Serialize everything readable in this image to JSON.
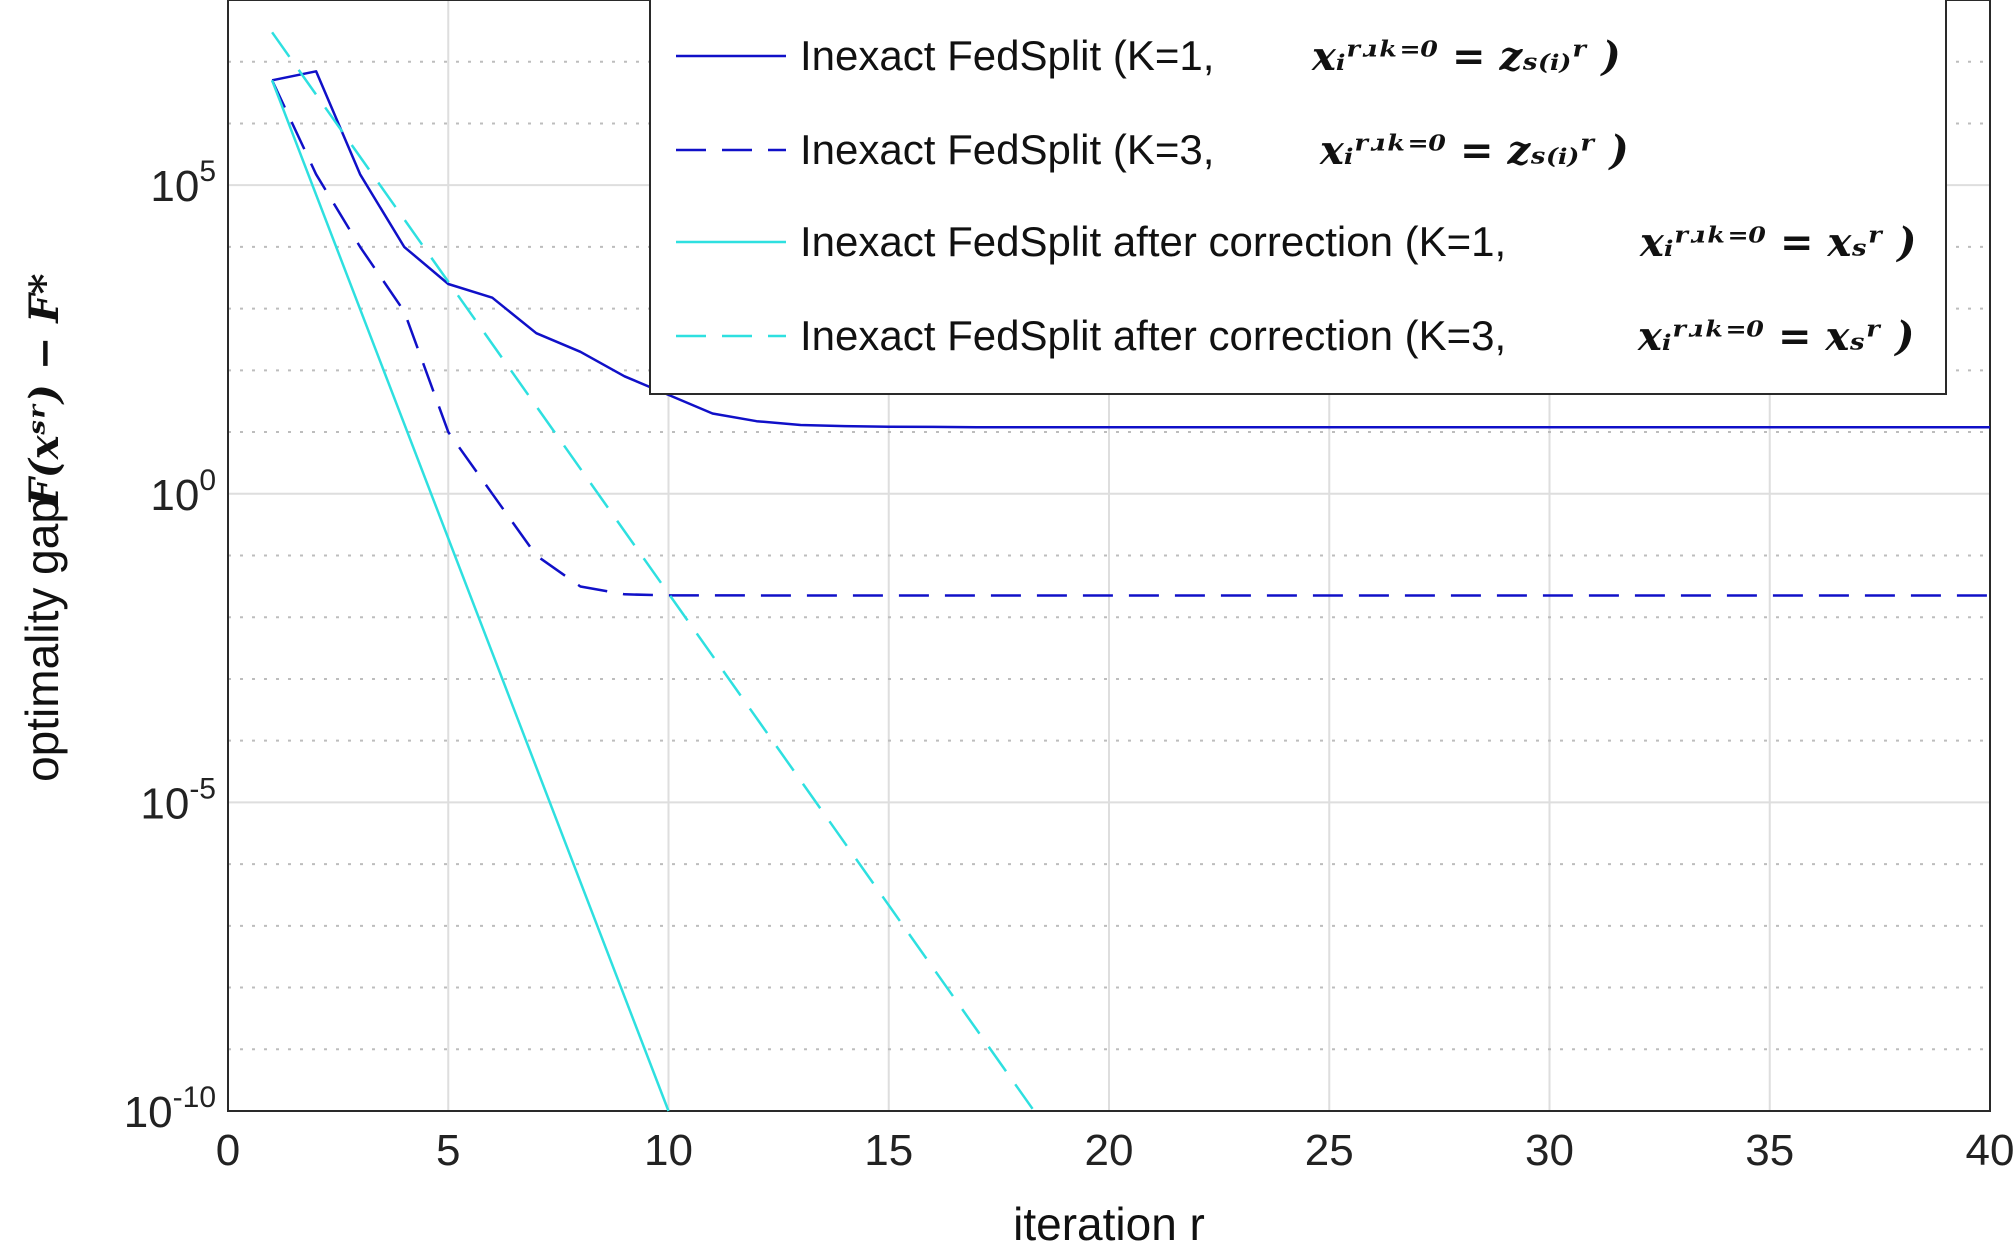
{
  "chart_data": {
    "type": "line",
    "xlabel": "iteration r",
    "ylabel": "optimality gap",
    "ylabel_math": "F(xˢʳ) − F*",
    "x_ticks": [
      "0",
      "5",
      "10",
      "15",
      "20",
      "25",
      "30",
      "35",
      "40"
    ],
    "y_ticks": [
      {
        "base": "10",
        "exp": "5",
        "value": 100000
      },
      {
        "base": "10",
        "exp": "0",
        "value": 1
      },
      {
        "base": "10",
        "exp": "-5",
        "value": 1e-05
      },
      {
        "base": "10",
        "exp": "-10",
        "value": 1e-10
      }
    ],
    "xlim": [
      0,
      40
    ],
    "ylim": [
      1e-10,
      100000000.0
    ],
    "y_scale": "log",
    "grid": true,
    "legend_position": "top-right",
    "series": [
      {
        "name": "Inexact FedSplit (K=1,",
        "math": "xᵢʳʴᵏ⁼⁰ = zₛ₍ᵢ₎ʳ",
        "color": "#1010c8",
        "dash": "solid",
        "x": [
          1,
          2,
          3,
          4,
          5,
          6,
          7,
          8,
          9,
          10,
          11,
          12,
          13,
          14,
          15,
          16,
          17,
          18,
          19,
          20,
          40
        ],
        "y": [
          5000000,
          7000000,
          150000,
          10000,
          2500,
          1500,
          400,
          200,
          80,
          40,
          20,
          15,
          13,
          12.5,
          12.2,
          12.1,
          12.0,
          12.0,
          12.0,
          12.0,
          12.0
        ]
      },
      {
        "name": "Inexact FedSplit (K=3,",
        "math": "xᵢʳʴᵏ⁼⁰ = zₛ₍ᵢ₎ʳ",
        "color": "#1010c8",
        "dash": "dashed",
        "x": [
          1,
          2,
          3,
          4,
          5,
          6,
          7,
          8,
          9,
          10,
          15,
          20,
          40
        ],
        "y": [
          5000000,
          150000,
          10000,
          900,
          10,
          1,
          0.1,
          0.0315,
          0.0235,
          0.0226,
          0.0225,
          0.0225,
          0.0225
        ]
      },
      {
        "name": "Inexact FedSplit after correction (K=1,",
        "math": "xᵢʳʴᵏ⁼⁰ = xₛʳ",
        "color": "#2ee0e0",
        "dash": "solid",
        "x": [
          1,
          10
        ],
        "y": [
          5000000,
          1e-10
        ]
      },
      {
        "name": "Inexact FedSplit  after correction (K=3,",
        "math": "xᵢʳʴᵏ⁼⁰ = xₛʳ",
        "color": "#2ee0e0",
        "dash": "dashed",
        "x": [
          1,
          18.3
        ],
        "y": [
          30000000,
          1e-10
        ]
      }
    ]
  }
}
